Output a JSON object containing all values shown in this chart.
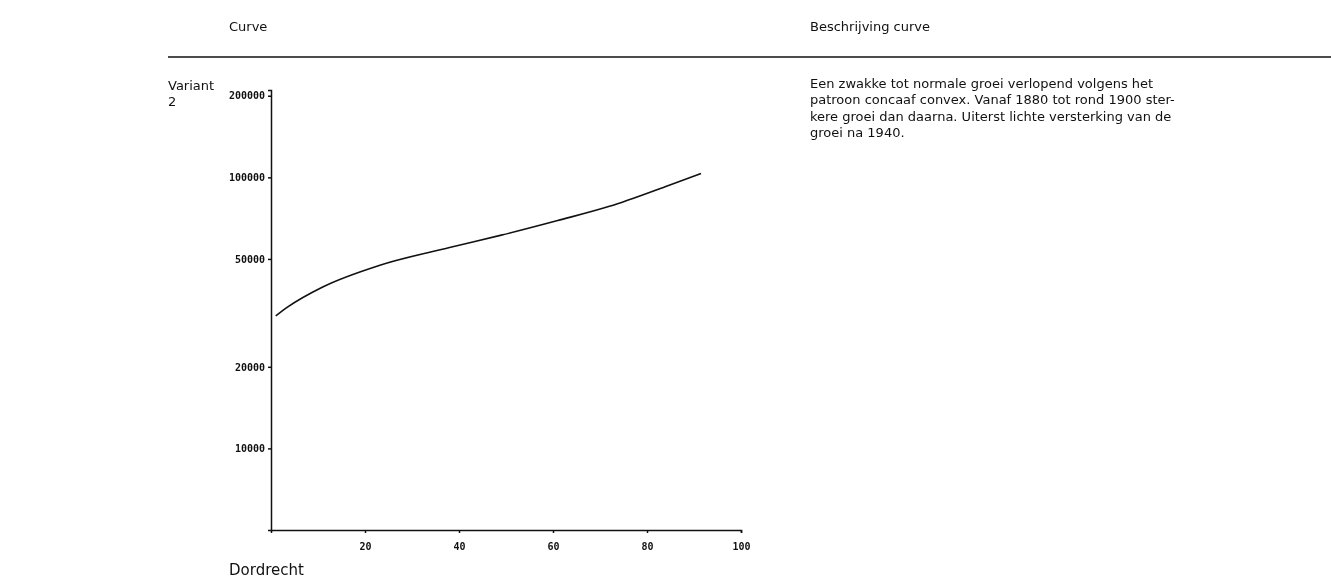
{
  "chart_data": {
    "type": "line",
    "title": "Dordrecht",
    "log": "y",
    "marker": "none",
    "line_style": "solid",
    "xlim": [
      0,
      100
    ],
    "xticks": [
      20,
      40,
      60,
      80,
      100
    ],
    "ylim": [
      5000,
      210000
    ],
    "yticks": [
      10000,
      20000,
      50000,
      100000,
      200000
    ],
    "series": [
      {
        "color": "#111111",
        "x": [
          1,
          3.5,
          11,
          23,
          38,
          49,
          61,
          72,
          84,
          91.5
        ],
        "values": [
          30800,
          33200,
          39400,
          47300,
          55100,
          61200,
          69300,
          78200,
          92600,
          103400
        ]
      }
    ],
    "annotations": [
      "Curve",
      "Beschrijving curve",
      "Variant\n2",
      "Een zwakke tot normale groei verlopend volgens het\npatroon concaaf convex. Vanaf 1880 tot rond 1900 ster-\nkere groei dan daarna. Uiterst lichte versterking van de\ngroei na 1940."
    ]
  }
}
